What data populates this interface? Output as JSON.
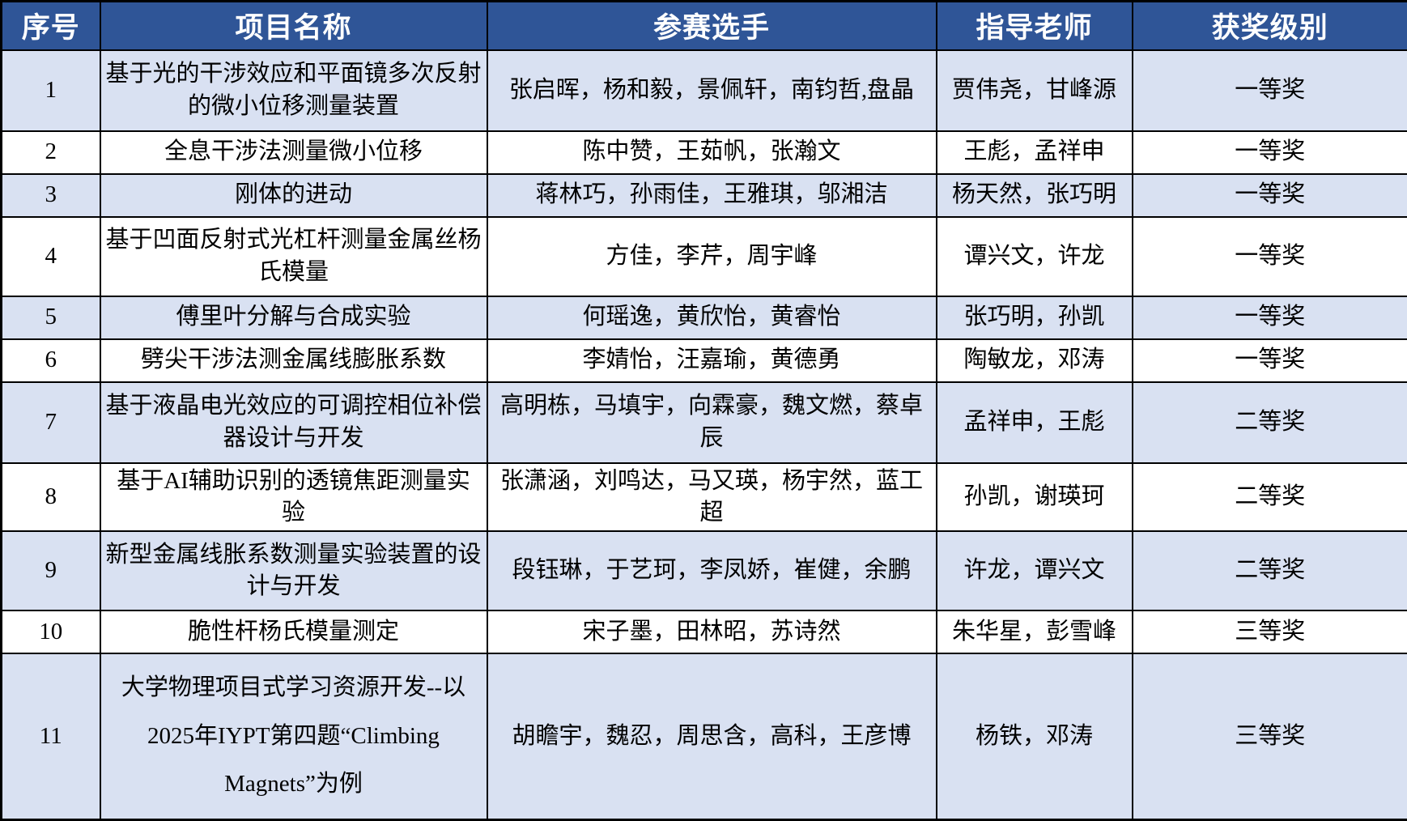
{
  "table": {
    "headers": [
      "序号",
      "项目名称",
      "参赛选手",
      "指导老师",
      "获奖级别"
    ],
    "rows": [
      {
        "no": "1",
        "project": "基于光的干涉效应和平面镜多次反射的微小位移测量装置",
        "contestants": "张启晖，杨和毅，景佩轩，南钧哲,盘晶",
        "teachers": "贾伟尧，甘峰源",
        "award": "一等奖"
      },
      {
        "no": "2",
        "project": "全息干涉法测量微小位移",
        "contestants": "陈中赞，王茹帆，张瀚文",
        "teachers": "王彪，孟祥申",
        "award": "一等奖"
      },
      {
        "no": "3",
        "project": "刚体的进动",
        "contestants": "蒋林巧，孙雨佳，王雅琪，邬湘洁",
        "teachers": "杨天然，张巧明",
        "award": "一等奖"
      },
      {
        "no": "4",
        "project": "基于凹面反射式光杠杆测量金属丝杨氏模量",
        "contestants": "方佳，李芹，周宇峰",
        "teachers": "谭兴文，许龙",
        "award": "一等奖"
      },
      {
        "no": "5",
        "project": "傅里叶分解与合成实验",
        "contestants": "何瑶逸，黄欣怡，黄睿怡",
        "teachers": "张巧明，孙凯",
        "award": "一等奖"
      },
      {
        "no": "6",
        "project": "劈尖干涉法测金属线膨胀系数",
        "contestants": "李婧怡，汪嘉瑜，黄德勇",
        "teachers": "陶敏龙，邓涛",
        "award": "一等奖"
      },
      {
        "no": "7",
        "project": "基于液晶电光效应的可调控相位补偿器设计与开发",
        "contestants": "高明栋，马填宇，向霖豪，魏文燃，蔡卓辰",
        "teachers": "孟祥申，王彪",
        "award": "二等奖"
      },
      {
        "no": "8",
        "project": "基于AI辅助识别的透镜焦距测量实验",
        "contestants": "张潇涵，刘鸣达，马又瑛，杨宇然，蓝工超",
        "teachers": "孙凯，谢瑛珂",
        "award": "二等奖"
      },
      {
        "no": "9",
        "project": "新型金属线胀系数测量实验装置的设计与开发",
        "contestants": "段钰琳，于艺珂，李凤娇，崔健，余鹏",
        "teachers": "许龙，谭兴文",
        "award": "二等奖"
      },
      {
        "no": "10",
        "project": "脆性杆杨氏模量测定",
        "contestants": "宋子墨，田林昭，苏诗然",
        "teachers": "朱华星，彭雪峰",
        "award": "三等奖"
      },
      {
        "no": "11",
        "project": "大学物理项目式学习资源开发--以2025年IYPT第四题“Climbing Magnets”为例",
        "contestants": "胡瞻宇，魏忍，周思含，高科，王彦博",
        "teachers": "杨铁，邓涛",
        "award": "三等奖"
      }
    ],
    "colors": {
      "header_bg": "#2F5597",
      "header_text": "#FFFFFF",
      "row_alt_bg": "#D9E1F2",
      "row_bg": "#FFFFFF",
      "border": "#000000"
    }
  }
}
